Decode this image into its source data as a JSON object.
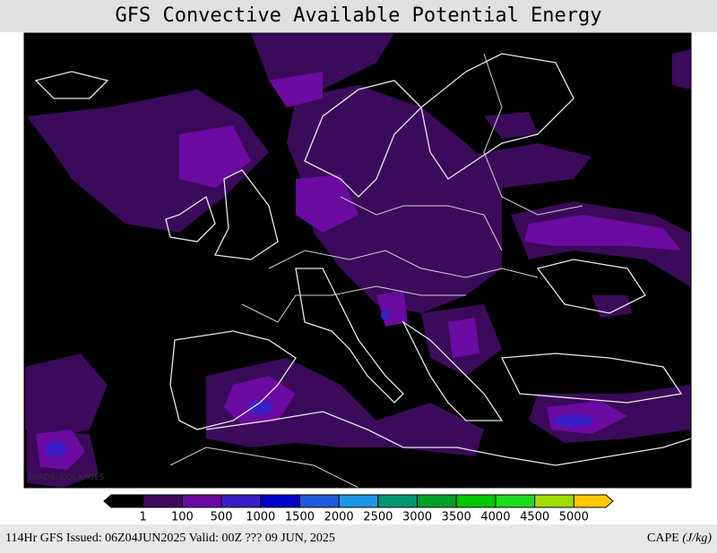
{
  "header": {
    "title": "GFS Convective Available Potential Energy"
  },
  "watermark": "GrADS: COLA/IGES",
  "colorbar": {
    "colors": [
      "#000000",
      "#3c0a5a",
      "#6a0aa0",
      "#3c1ec8",
      "#0000c8",
      "#1e5adc",
      "#1e96e6",
      "#00966e",
      "#00a028",
      "#00c800",
      "#1edc1e",
      "#a0dc00",
      "#ffc800"
    ],
    "ticks": [
      1,
      100,
      500,
      1000,
      1500,
      2000,
      2500,
      3000,
      3500,
      4000,
      4500,
      5000
    ]
  },
  "footer": {
    "info": "114Hr GFS Issued: 06Z04JUN2025 Valid: 00Z ??? 09 JUN, 2025",
    "field": "CAPE",
    "unit": "(J/kg)"
  }
}
